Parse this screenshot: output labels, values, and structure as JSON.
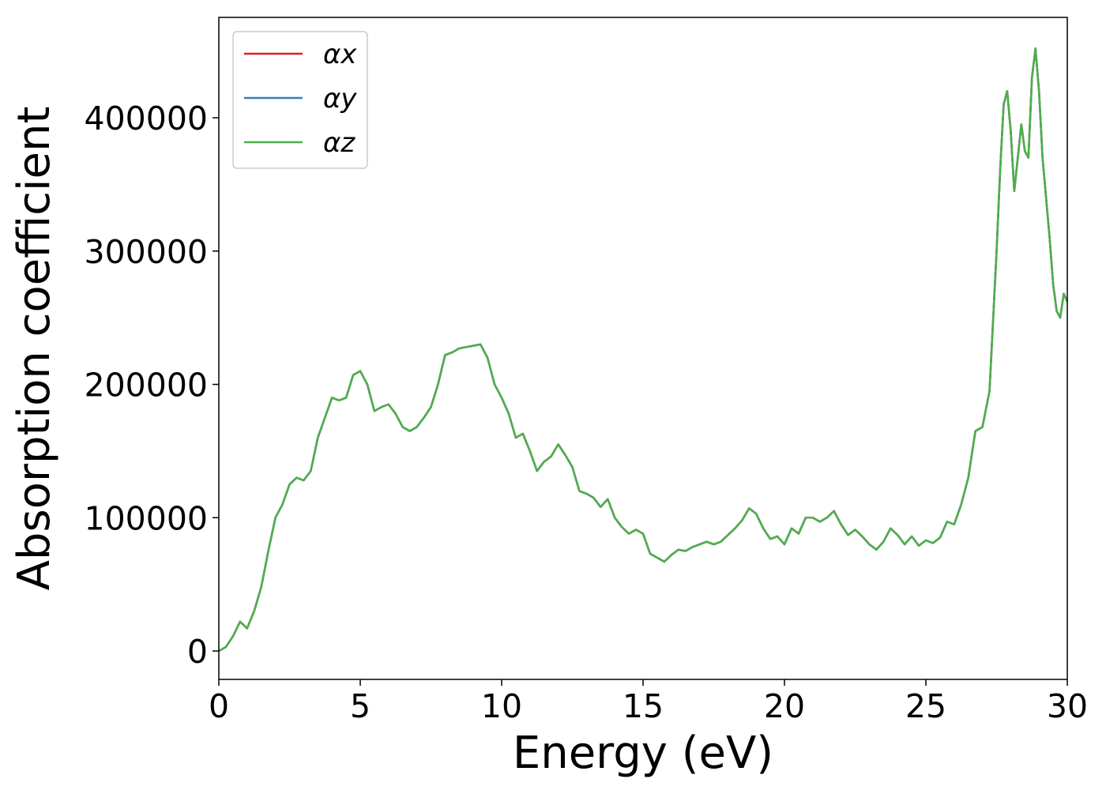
{
  "chart_data": {
    "type": "line",
    "xlabel": "Energy (eV)",
    "ylabel": "Absorption coefficient",
    "x": [
      0,
      0.25,
      0.5,
      0.75,
      1,
      1.25,
      1.5,
      1.75,
      2,
      2.25,
      2.5,
      2.75,
      3,
      3.25,
      3.5,
      3.75,
      4,
      4.25,
      4.5,
      4.75,
      5,
      5.25,
      5.5,
      5.75,
      6,
      6.25,
      6.5,
      6.75,
      7,
      7.25,
      7.5,
      7.75,
      8,
      8.25,
      8.5,
      8.75,
      9,
      9.25,
      9.5,
      9.75,
      10,
      10.25,
      10.5,
      10.75,
      11,
      11.25,
      11.5,
      11.75,
      12,
      12.25,
      12.5,
      12.75,
      13,
      13.25,
      13.5,
      13.75,
      14,
      14.25,
      14.5,
      14.75,
      15,
      15.25,
      15.5,
      15.75,
      16,
      16.25,
      16.5,
      16.75,
      17,
      17.25,
      17.5,
      17.75,
      18,
      18.25,
      18.5,
      18.75,
      19,
      19.25,
      19.5,
      19.75,
      20,
      20.25,
      20.5,
      20.75,
      21,
      21.25,
      21.5,
      21.75,
      22,
      22.25,
      22.5,
      22.75,
      23,
      23.25,
      23.5,
      23.75,
      24,
      24.25,
      24.5,
      24.75,
      25,
      25.25,
      25.5,
      25.75,
      26,
      26.25,
      26.5,
      26.75,
      27,
      27.25,
      27.5,
      27.625,
      27.75,
      27.875,
      28,
      28.125,
      28.25,
      28.375,
      28.5,
      28.625,
      28.75,
      28.875,
      29,
      29.125,
      29.25,
      29.375,
      29.5,
      29.625,
      29.75,
      29.875,
      30
    ],
    "series": [
      {
        "name": "αx",
        "color": "#e41a1c",
        "values": [
          0,
          3000,
          11000,
          22000,
          17000,
          30000,
          48000,
          75000,
          100000,
          110000,
          125000,
          130000,
          128000,
          135000,
          160000,
          175000,
          190000,
          188000,
          190000,
          207000,
          210000,
          200000,
          180000,
          183000,
          185000,
          178000,
          168000,
          165000,
          168000,
          175000,
          183000,
          200000,
          222000,
          224000,
          227000,
          228000,
          229000,
          230000,
          220000,
          200000,
          190000,
          178000,
          160000,
          163000,
          150000,
          135000,
          142000,
          146000,
          155000,
          147000,
          138000,
          120000,
          118000,
          115000,
          108000,
          114000,
          100000,
          93000,
          88000,
          91000,
          88000,
          73000,
          70000,
          67000,
          72000,
          76000,
          75000,
          78000,
          80000,
          82000,
          80000,
          82000,
          87000,
          92000,
          98000,
          107000,
          103000,
          92000,
          84000,
          86000,
          80000,
          92000,
          88000,
          100000,
          100000,
          97000,
          100000,
          105000,
          95000,
          87000,
          91000,
          86000,
          80000,
          76000,
          82000,
          92000,
          87000,
          80000,
          86000,
          79000,
          83000,
          81000,
          85000,
          97000,
          95000,
          110000,
          130000,
          165000,
          168000,
          195000,
          300000,
          360000,
          410000,
          420000,
          390000,
          345000,
          370000,
          395000,
          375000,
          370000,
          430000,
          452000,
          420000,
          370000,
          340000,
          310000,
          275000,
          255000,
          250000,
          268000,
          262000
        ]
      },
      {
        "name": "αy",
        "color": "#377eb8",
        "values": [
          0,
          3000,
          11000,
          22000,
          17000,
          30000,
          48000,
          75000,
          100000,
          110000,
          125000,
          130000,
          128000,
          135000,
          160000,
          175000,
          190000,
          188000,
          190000,
          207000,
          210000,
          200000,
          180000,
          183000,
          185000,
          178000,
          168000,
          165000,
          168000,
          175000,
          183000,
          200000,
          222000,
          224000,
          227000,
          228000,
          229000,
          230000,
          220000,
          200000,
          190000,
          178000,
          160000,
          163000,
          150000,
          135000,
          142000,
          146000,
          155000,
          147000,
          138000,
          120000,
          118000,
          115000,
          108000,
          114000,
          100000,
          93000,
          88000,
          91000,
          88000,
          73000,
          70000,
          67000,
          72000,
          76000,
          75000,
          78000,
          80000,
          82000,
          80000,
          82000,
          87000,
          92000,
          98000,
          107000,
          103000,
          92000,
          84000,
          86000,
          80000,
          92000,
          88000,
          100000,
          100000,
          97000,
          100000,
          105000,
          95000,
          87000,
          91000,
          86000,
          80000,
          76000,
          82000,
          92000,
          87000,
          80000,
          86000,
          79000,
          83000,
          81000,
          85000,
          97000,
          95000,
          110000,
          130000,
          165000,
          168000,
          195000,
          300000,
          360000,
          410000,
          420000,
          390000,
          345000,
          370000,
          395000,
          375000,
          370000,
          430000,
          452000,
          420000,
          370000,
          340000,
          310000,
          275000,
          255000,
          250000,
          268000,
          262000
        ]
      },
      {
        "name": "αz",
        "color": "#4daf4a",
        "values": [
          0,
          3000,
          11000,
          22000,
          17000,
          30000,
          48000,
          75000,
          100000,
          110000,
          125000,
          130000,
          128000,
          135000,
          160000,
          175000,
          190000,
          188000,
          190000,
          207000,
          210000,
          200000,
          180000,
          183000,
          185000,
          178000,
          168000,
          165000,
          168000,
          175000,
          183000,
          200000,
          222000,
          224000,
          227000,
          228000,
          229000,
          230000,
          220000,
          200000,
          190000,
          178000,
          160000,
          163000,
          150000,
          135000,
          142000,
          146000,
          155000,
          147000,
          138000,
          120000,
          118000,
          115000,
          108000,
          114000,
          100000,
          93000,
          88000,
          91000,
          88000,
          73000,
          70000,
          67000,
          72000,
          76000,
          75000,
          78000,
          80000,
          82000,
          80000,
          82000,
          87000,
          92000,
          98000,
          107000,
          103000,
          92000,
          84000,
          86000,
          80000,
          92000,
          88000,
          100000,
          100000,
          97000,
          100000,
          105000,
          95000,
          87000,
          91000,
          86000,
          80000,
          76000,
          82000,
          92000,
          87000,
          80000,
          86000,
          79000,
          83000,
          81000,
          85000,
          97000,
          95000,
          110000,
          130000,
          165000,
          168000,
          195000,
          300000,
          360000,
          410000,
          420000,
          390000,
          345000,
          370000,
          395000,
          375000,
          370000,
          430000,
          452000,
          420000,
          370000,
          340000,
          310000,
          275000,
          255000,
          250000,
          268000,
          262000
        ]
      }
    ],
    "xlim": [
      0,
      30
    ],
    "xticks": [
      0,
      5,
      10,
      15,
      20,
      25,
      30
    ],
    "ylim": [
      -21300,
      475300
    ],
    "yticks": [
      0,
      100000,
      200000,
      300000,
      400000
    ],
    "legend": "upper left"
  }
}
